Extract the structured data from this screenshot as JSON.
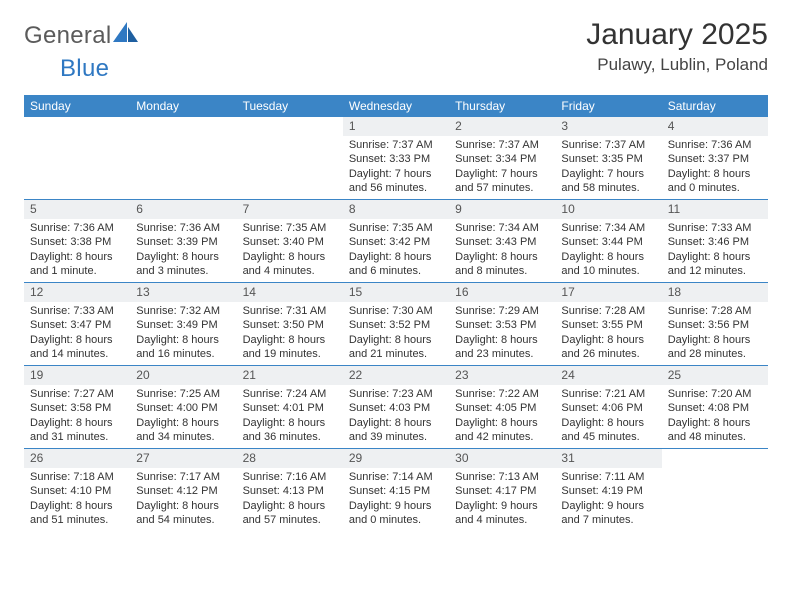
{
  "brand": {
    "word1": "General",
    "word2": "Blue"
  },
  "title": "January 2025",
  "subtitle": "Pulawy, Lublin, Poland",
  "colors": {
    "header_bg": "#3b85c6",
    "header_fg": "#ffffff",
    "daynum_bg": "#eef0f2",
    "rule": "#3b85c6",
    "brand_gray": "#5b5b5b",
    "brand_blue": "#2f78c2"
  },
  "day_labels": [
    "Sunday",
    "Monday",
    "Tuesday",
    "Wednesday",
    "Thursday",
    "Friday",
    "Saturday"
  ],
  "weeks": [
    [
      {
        "n": "",
        "l1": "",
        "l2": "",
        "l3": "",
        "l4": ""
      },
      {
        "n": "",
        "l1": "",
        "l2": "",
        "l3": "",
        "l4": ""
      },
      {
        "n": "",
        "l1": "",
        "l2": "",
        "l3": "",
        "l4": ""
      },
      {
        "n": "1",
        "l1": "Sunrise: 7:37 AM",
        "l2": "Sunset: 3:33 PM",
        "l3": "Daylight: 7 hours",
        "l4": "and 56 minutes."
      },
      {
        "n": "2",
        "l1": "Sunrise: 7:37 AM",
        "l2": "Sunset: 3:34 PM",
        "l3": "Daylight: 7 hours",
        "l4": "and 57 minutes."
      },
      {
        "n": "3",
        "l1": "Sunrise: 7:37 AM",
        "l2": "Sunset: 3:35 PM",
        "l3": "Daylight: 7 hours",
        "l4": "and 58 minutes."
      },
      {
        "n": "4",
        "l1": "Sunrise: 7:36 AM",
        "l2": "Sunset: 3:37 PM",
        "l3": "Daylight: 8 hours",
        "l4": "and 0 minutes."
      }
    ],
    [
      {
        "n": "5",
        "l1": "Sunrise: 7:36 AM",
        "l2": "Sunset: 3:38 PM",
        "l3": "Daylight: 8 hours",
        "l4": "and 1 minute."
      },
      {
        "n": "6",
        "l1": "Sunrise: 7:36 AM",
        "l2": "Sunset: 3:39 PM",
        "l3": "Daylight: 8 hours",
        "l4": "and 3 minutes."
      },
      {
        "n": "7",
        "l1": "Sunrise: 7:35 AM",
        "l2": "Sunset: 3:40 PM",
        "l3": "Daylight: 8 hours",
        "l4": "and 4 minutes."
      },
      {
        "n": "8",
        "l1": "Sunrise: 7:35 AM",
        "l2": "Sunset: 3:42 PM",
        "l3": "Daylight: 8 hours",
        "l4": "and 6 minutes."
      },
      {
        "n": "9",
        "l1": "Sunrise: 7:34 AM",
        "l2": "Sunset: 3:43 PM",
        "l3": "Daylight: 8 hours",
        "l4": "and 8 minutes."
      },
      {
        "n": "10",
        "l1": "Sunrise: 7:34 AM",
        "l2": "Sunset: 3:44 PM",
        "l3": "Daylight: 8 hours",
        "l4": "and 10 minutes."
      },
      {
        "n": "11",
        "l1": "Sunrise: 7:33 AM",
        "l2": "Sunset: 3:46 PM",
        "l3": "Daylight: 8 hours",
        "l4": "and 12 minutes."
      }
    ],
    [
      {
        "n": "12",
        "l1": "Sunrise: 7:33 AM",
        "l2": "Sunset: 3:47 PM",
        "l3": "Daylight: 8 hours",
        "l4": "and 14 minutes."
      },
      {
        "n": "13",
        "l1": "Sunrise: 7:32 AM",
        "l2": "Sunset: 3:49 PM",
        "l3": "Daylight: 8 hours",
        "l4": "and 16 minutes."
      },
      {
        "n": "14",
        "l1": "Sunrise: 7:31 AM",
        "l2": "Sunset: 3:50 PM",
        "l3": "Daylight: 8 hours",
        "l4": "and 19 minutes."
      },
      {
        "n": "15",
        "l1": "Sunrise: 7:30 AM",
        "l2": "Sunset: 3:52 PM",
        "l3": "Daylight: 8 hours",
        "l4": "and 21 minutes."
      },
      {
        "n": "16",
        "l1": "Sunrise: 7:29 AM",
        "l2": "Sunset: 3:53 PM",
        "l3": "Daylight: 8 hours",
        "l4": "and 23 minutes."
      },
      {
        "n": "17",
        "l1": "Sunrise: 7:28 AM",
        "l2": "Sunset: 3:55 PM",
        "l3": "Daylight: 8 hours",
        "l4": "and 26 minutes."
      },
      {
        "n": "18",
        "l1": "Sunrise: 7:28 AM",
        "l2": "Sunset: 3:56 PM",
        "l3": "Daylight: 8 hours",
        "l4": "and 28 minutes."
      }
    ],
    [
      {
        "n": "19",
        "l1": "Sunrise: 7:27 AM",
        "l2": "Sunset: 3:58 PM",
        "l3": "Daylight: 8 hours",
        "l4": "and 31 minutes."
      },
      {
        "n": "20",
        "l1": "Sunrise: 7:25 AM",
        "l2": "Sunset: 4:00 PM",
        "l3": "Daylight: 8 hours",
        "l4": "and 34 minutes."
      },
      {
        "n": "21",
        "l1": "Sunrise: 7:24 AM",
        "l2": "Sunset: 4:01 PM",
        "l3": "Daylight: 8 hours",
        "l4": "and 36 minutes."
      },
      {
        "n": "22",
        "l1": "Sunrise: 7:23 AM",
        "l2": "Sunset: 4:03 PM",
        "l3": "Daylight: 8 hours",
        "l4": "and 39 minutes."
      },
      {
        "n": "23",
        "l1": "Sunrise: 7:22 AM",
        "l2": "Sunset: 4:05 PM",
        "l3": "Daylight: 8 hours",
        "l4": "and 42 minutes."
      },
      {
        "n": "24",
        "l1": "Sunrise: 7:21 AM",
        "l2": "Sunset: 4:06 PM",
        "l3": "Daylight: 8 hours",
        "l4": "and 45 minutes."
      },
      {
        "n": "25",
        "l1": "Sunrise: 7:20 AM",
        "l2": "Sunset: 4:08 PM",
        "l3": "Daylight: 8 hours",
        "l4": "and 48 minutes."
      }
    ],
    [
      {
        "n": "26",
        "l1": "Sunrise: 7:18 AM",
        "l2": "Sunset: 4:10 PM",
        "l3": "Daylight: 8 hours",
        "l4": "and 51 minutes."
      },
      {
        "n": "27",
        "l1": "Sunrise: 7:17 AM",
        "l2": "Sunset: 4:12 PM",
        "l3": "Daylight: 8 hours",
        "l4": "and 54 minutes."
      },
      {
        "n": "28",
        "l1": "Sunrise: 7:16 AM",
        "l2": "Sunset: 4:13 PM",
        "l3": "Daylight: 8 hours",
        "l4": "and 57 minutes."
      },
      {
        "n": "29",
        "l1": "Sunrise: 7:14 AM",
        "l2": "Sunset: 4:15 PM",
        "l3": "Daylight: 9 hours",
        "l4": "and 0 minutes."
      },
      {
        "n": "30",
        "l1": "Sunrise: 7:13 AM",
        "l2": "Sunset: 4:17 PM",
        "l3": "Daylight: 9 hours",
        "l4": "and 4 minutes."
      },
      {
        "n": "31",
        "l1": "Sunrise: 7:11 AM",
        "l2": "Sunset: 4:19 PM",
        "l3": "Daylight: 9 hours",
        "l4": "and 7 minutes."
      },
      {
        "n": "",
        "l1": "",
        "l2": "",
        "l3": "",
        "l4": ""
      }
    ]
  ]
}
